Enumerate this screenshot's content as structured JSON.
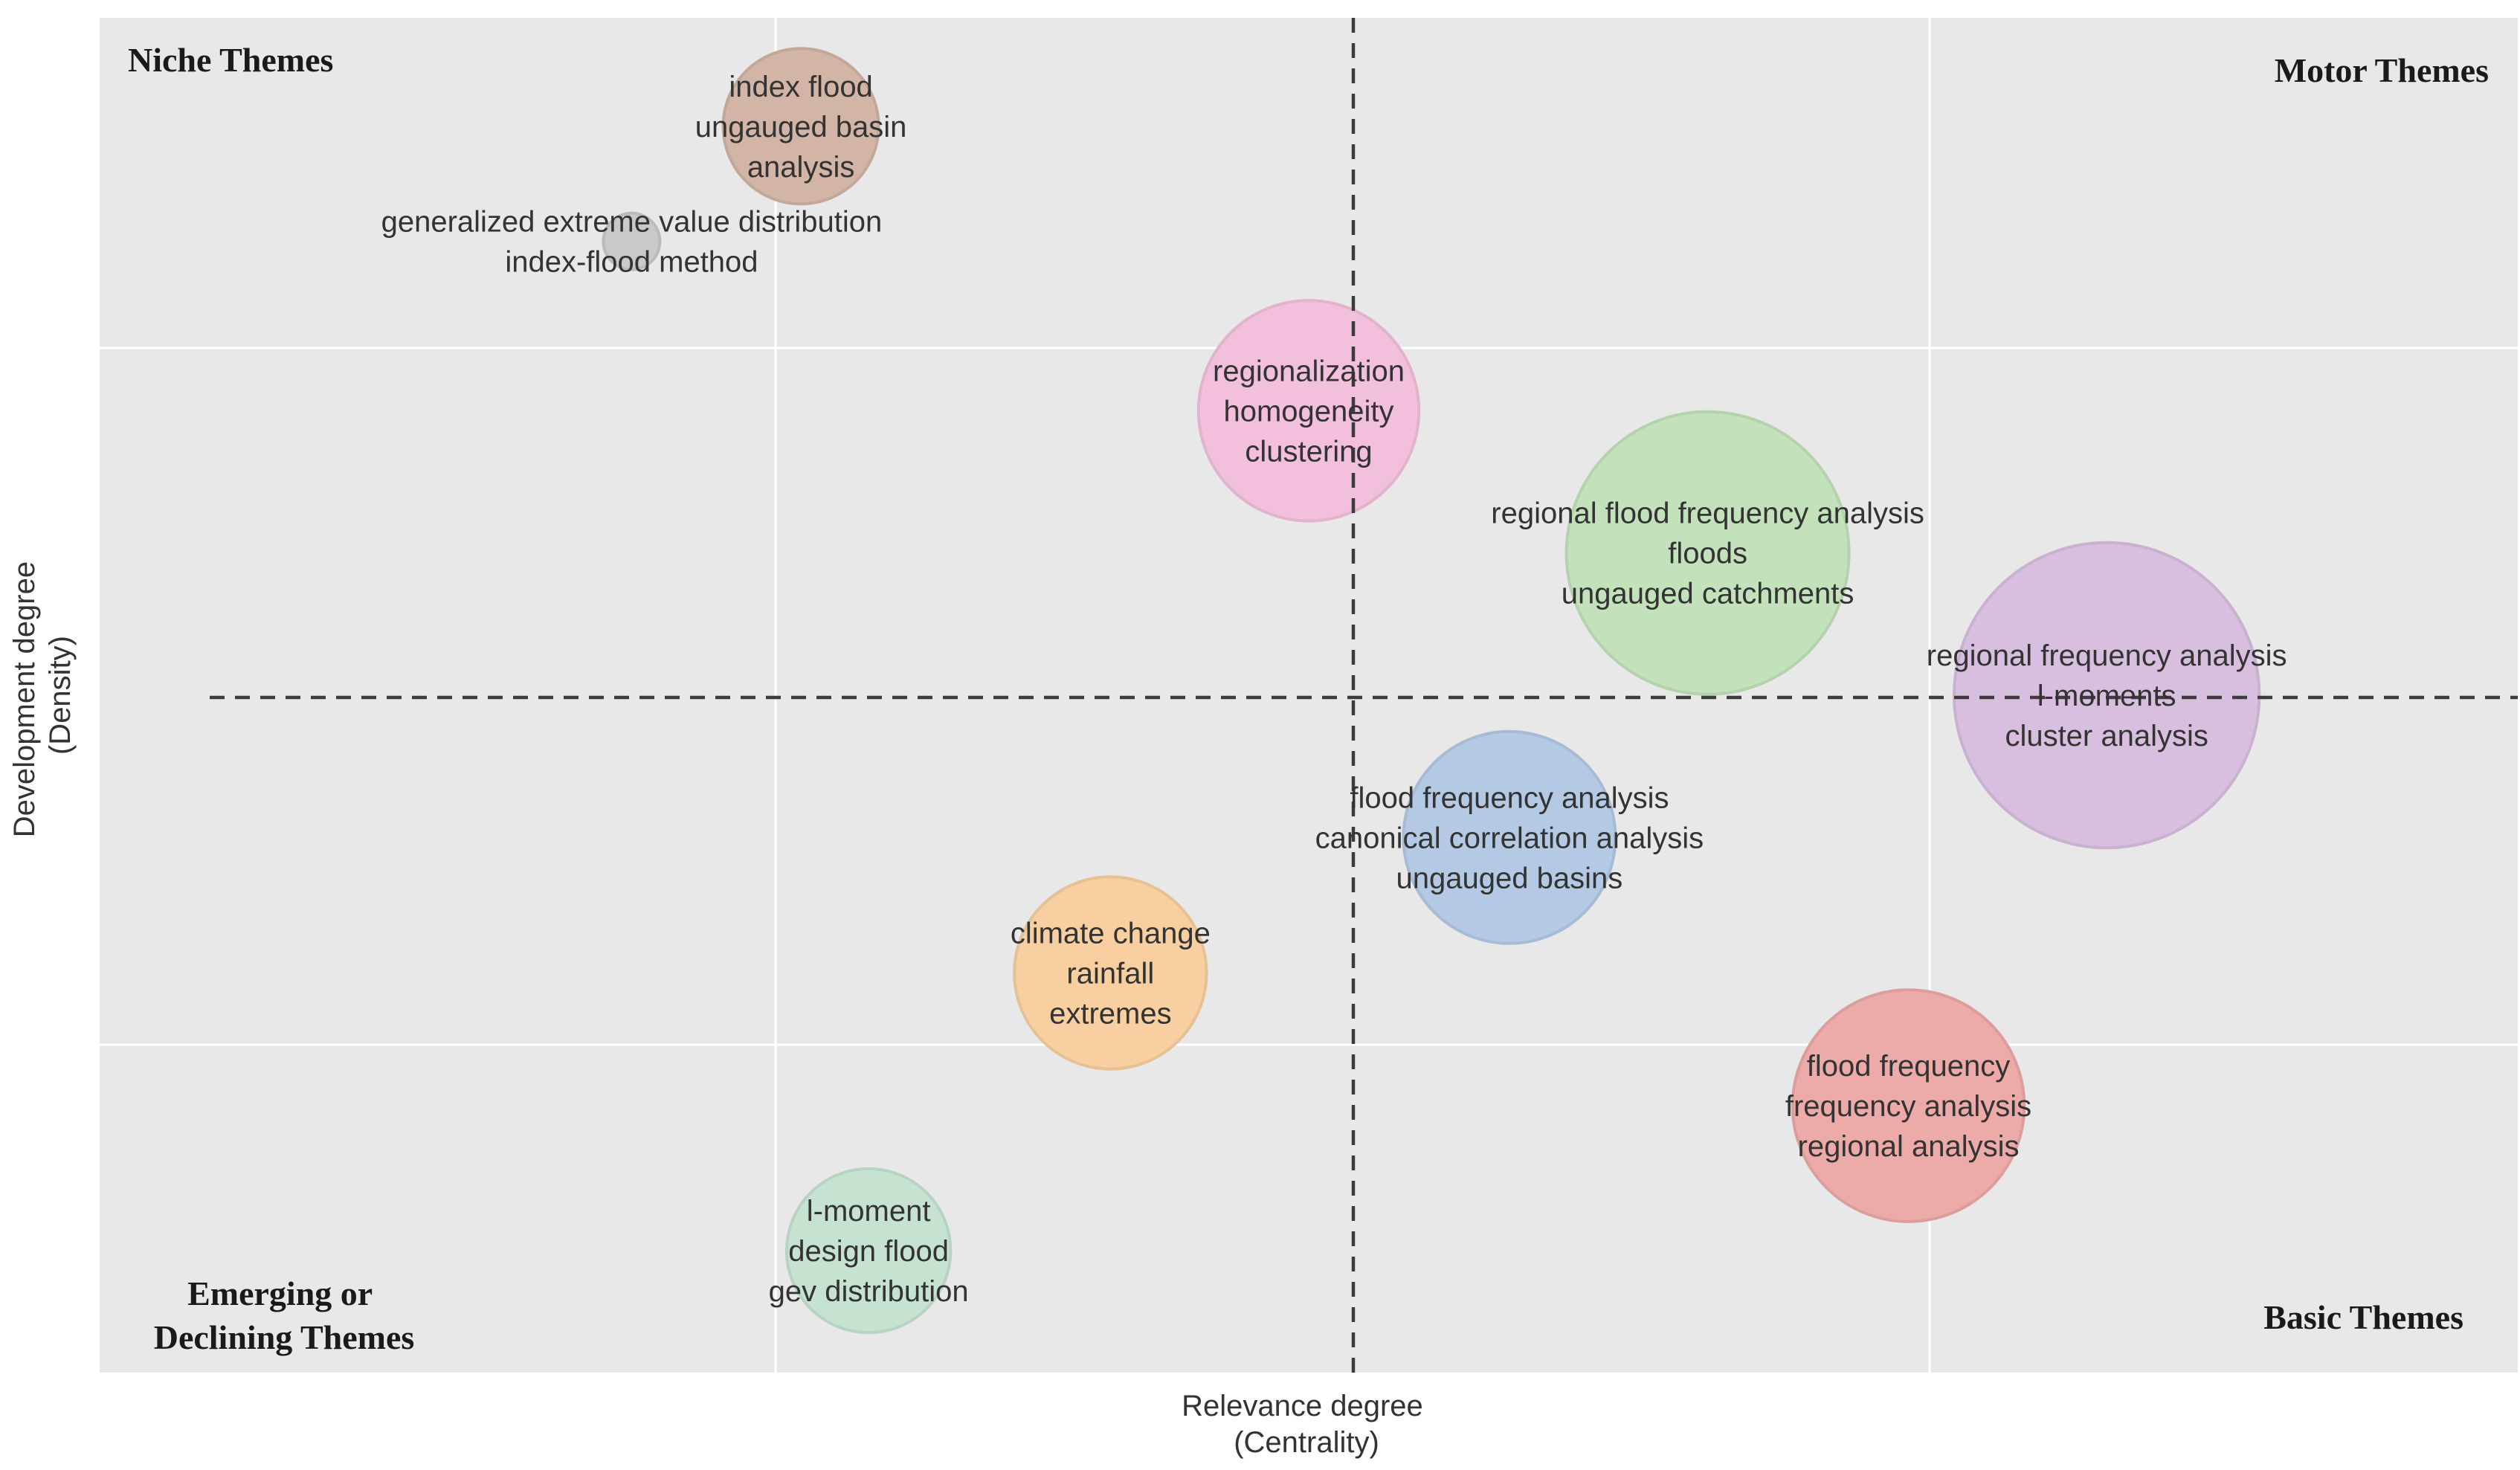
{
  "chart_data": {
    "type": "scatter",
    "subtype": "bubble",
    "xlabel": [
      "Relevance degree",
      "(Centrality)"
    ],
    "ylabel": [
      "Development degree",
      "(Density)"
    ],
    "grid": true,
    "quadrants": {
      "top_left": [
        "Niche Themes"
      ],
      "top_right": [
        "Motor Themes"
      ],
      "bottom_left": [
        "Emerging or",
        "Declining Themes"
      ],
      "bottom_right": [
        "Basic Themes"
      ]
    },
    "clusters": [
      {
        "labels": [
          "index flood",
          "ungauged basin",
          "analysis"
        ],
        "x": 2.9,
        "y": 9.2,
        "size": 0.55,
        "color": "#d2b5a6"
      },
      {
        "labels": [
          "generalized extreme value distribution",
          "index-flood method"
        ],
        "x": 2.2,
        "y": 8.35,
        "size": 0.2,
        "color": "#c9c9c9"
      },
      {
        "labels": [
          "regionalization",
          "homogeneity",
          "clustering"
        ],
        "x": 5.0,
        "y": 7.1,
        "size": 0.78,
        "color": "#f2c0dc"
      },
      {
        "labels": [
          "regional flood frequency analysis",
          "floods",
          "ungauged catchments"
        ],
        "x": 6.65,
        "y": 6.05,
        "size": 1.0,
        "color": "#c3e2bb"
      },
      {
        "labels": [
          "regional frequency analysis",
          "l-moments",
          "cluster analysis"
        ],
        "x": 8.3,
        "y": 5.0,
        "size": 1.08,
        "color": "#d8bfdf"
      },
      {
        "labels": [
          "flood frequency analysis",
          "canonical correlation analysis",
          "ungauged basins"
        ],
        "x": 5.83,
        "y": 3.95,
        "size": 0.75,
        "color": "#b4c9e4"
      },
      {
        "labels": [
          "climate change",
          "rainfall",
          "extremes"
        ],
        "x": 4.18,
        "y": 2.95,
        "size": 0.68,
        "color": "#f7cfa0"
      },
      {
        "labels": [
          "flood frequency",
          "frequency analysis",
          "regional analysis"
        ],
        "x": 7.48,
        "y": 1.97,
        "size": 0.82,
        "color": "#ecaaa8"
      },
      {
        "labels": [
          "l-moment",
          "design flood",
          "gev distribution"
        ],
        "x": 3.18,
        "y": 0.9,
        "size": 0.58,
        "color": "#c6e3d2"
      }
    ]
  }
}
